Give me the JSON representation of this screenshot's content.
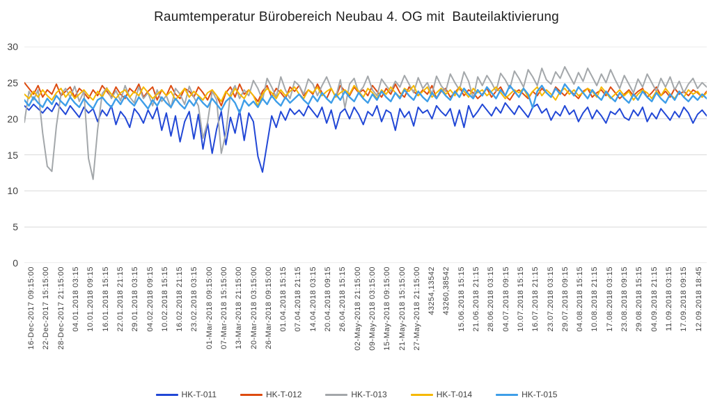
{
  "title": "Raumtemperatur Bürobereich Neubau 4. OG mit  Bauteilaktivierung",
  "chart_data": {
    "type": "line",
    "title": "Raumtemperatur Bürobereich Neubau 4. OG mit Bauteilaktivierung",
    "xlabel": "",
    "ylabel": "",
    "ylim": [
      0,
      30
    ],
    "yticks": [
      0,
      5,
      10,
      15,
      20,
      25,
      30
    ],
    "grid": "horizontal",
    "gridline_color": "#d9d9d9",
    "legend_position": "bottom",
    "x_tick_labels": [
      "16-Dec-2017 09:15:00",
      "22-Dec-2017 15:15:00",
      "28-Dec-2017 21:15:00",
      "04.01.2018 03:15",
      "10.01.2018 09:15",
      "16.01.2018 15:15",
      "22.01.2018 21:15",
      "29.01.2018 03:15",
      "04.02.2018 09:15",
      "10.02.2018 15:15",
      "16.02.2018 21:15",
      "23.02.2018 03:15",
      "01-Mar-2018 09:15:00",
      "07-Mar-2018 15:15:00",
      "13-Mar-2018 21:15:00",
      "20-Mar-2018 03:15:00",
      "26-Mar-2018 09:15:00",
      "01.04.2018 15:15",
      "07.04.2018 21:15",
      "14.04.2018 03:15",
      "20.04.2018 09:15",
      "26.04.2018 15:15",
      "02-May-2018 21:15:00",
      "09-May-2018 03:15:00",
      "15-May-2018 09:15:00",
      "21-May-2018 15:15:00",
      "27-May-2018 21:15:00",
      "43254,13542",
      "43260,38542",
      "15.06.2018 15:15",
      "21.06.2018 21:15",
      "28.06.2018 03:15",
      "04.07.2018 09:15",
      "10.07.2018 15:15",
      "16.07.2018 21:15",
      "23.07.2018 03:15",
      "29.07.2018 09:15",
      "04.08.2018 15:15",
      "10.08.2018 21:15",
      "17.08.2018 03:15",
      "23.08.2018 09:15",
      "29.08.2018 15:15",
      "04.09.2018 21:15",
      "11.09.2018 03:15",
      "17.09.2018 09:15",
      "12.09.2018 18:45"
    ],
    "series": [
      {
        "name": "HK-T-011",
        "color": "#2147d6",
        "stroke_width": 2,
        "values": [
          21.8,
          21.2,
          22.0,
          21.4,
          20.8,
          21.6,
          21.0,
          22.2,
          21.4,
          20.6,
          21.8,
          21.0,
          20.2,
          21.6,
          20.8,
          21.4,
          19.6,
          21.2,
          20.4,
          21.8,
          19.2,
          21.0,
          20.2,
          18.8,
          21.4,
          20.6,
          19.4,
          21.2,
          20.0,
          21.6,
          18.4,
          20.8,
          17.6,
          20.4,
          16.8,
          19.6,
          21.0,
          17.2,
          20.6,
          15.8,
          19.4,
          15.2,
          18.6,
          21.0,
          16.4,
          20.2,
          18.0,
          21.2,
          17.0,
          20.8,
          19.6,
          14.8,
          12.6,
          16.5,
          20.4,
          18.8,
          21.0,
          19.8,
          21.4,
          20.6,
          21.2,
          20.4,
          21.8,
          21.0,
          20.2,
          21.6,
          19.4,
          21.2,
          18.6,
          20.8,
          21.4,
          20.0,
          21.6,
          20.6,
          19.2,
          21.0,
          20.4,
          21.8,
          19.6,
          21.2,
          20.8,
          18.4,
          21.4,
          20.2,
          21.0,
          19.0,
          21.6,
          20.8,
          21.2,
          20.0,
          21.8,
          21.0,
          20.4,
          21.4,
          19.0,
          21.2,
          18.8,
          21.8,
          20.2,
          21.0,
          22.0,
          21.2,
          20.4,
          21.6,
          20.8,
          22.2,
          21.4,
          20.6,
          21.8,
          21.0,
          20.2,
          21.6,
          22.0,
          20.8,
          21.4,
          19.8,
          21.0,
          20.4,
          21.8,
          20.6,
          21.2,
          19.6,
          20.8,
          21.6,
          20.0,
          21.2,
          20.4,
          19.4,
          21.0,
          20.6,
          21.4,
          20.2,
          19.8,
          21.2,
          20.4,
          21.6,
          19.6,
          20.8,
          20.0,
          21.4,
          20.6,
          19.8,
          21.0,
          20.2,
          21.6,
          20.8,
          19.4,
          20.6,
          21.2,
          20.4
        ]
      },
      {
        "name": "HK-T-012",
        "color": "#dd4b0f",
        "stroke_width": 2,
        "values": [
          25.0,
          24.2,
          23.4,
          24.6,
          23.0,
          24.0,
          23.4,
          24.8,
          23.2,
          23.8,
          24.4,
          23.0,
          24.2,
          23.6,
          22.8,
          24.0,
          23.2,
          24.6,
          23.8,
          23.0,
          24.4,
          23.4,
          22.8,
          24.2,
          23.6,
          24.8,
          23.0,
          23.8,
          24.4,
          22.6,
          24.0,
          23.2,
          24.6,
          23.4,
          22.8,
          24.2,
          23.8,
          23.0,
          24.4,
          23.6,
          22.6,
          24.0,
          23.2,
          21.8,
          23.6,
          24.4,
          23.0,
          24.8,
          23.4,
          24.0,
          23.2,
          22.4,
          23.8,
          24.6,
          23.0,
          24.2,
          23.6,
          22.8,
          24.4,
          23.8,
          24.6,
          23.2,
          24.0,
          23.4,
          24.8,
          23.6,
          22.8,
          24.2,
          23.0,
          24.6,
          23.8,
          23.2,
          24.4,
          23.6,
          24.0,
          23.2,
          24.6,
          23.8,
          23.0,
          24.2,
          23.4,
          24.8,
          23.6,
          23.0,
          24.4,
          23.8,
          23.2,
          24.0,
          23.4,
          24.6,
          22.8,
          23.8,
          24.2,
          23.0,
          23.6,
          24.4,
          23.2,
          24.0,
          23.6,
          22.8,
          23.4,
          24.2,
          23.0,
          23.8,
          24.4,
          23.2,
          22.6,
          23.6,
          24.0,
          23.4,
          22.8,
          23.8,
          23.2,
          24.2,
          23.6,
          23.0,
          24.4,
          23.8,
          23.2,
          24.0,
          23.4,
          22.8,
          23.8,
          24.2,
          23.0,
          23.6,
          24.0,
          23.2,
          24.4,
          23.6,
          22.8,
          23.4,
          24.0,
          23.2,
          23.8,
          24.2,
          23.0,
          23.6,
          24.4,
          23.2,
          23.8,
          23.0,
          24.2,
          23.4,
          23.8,
          23.2,
          24.0,
          23.6,
          23.0,
          23.8
        ]
      },
      {
        "name": "HK-T-013",
        "color": "#a3a7aa",
        "stroke_width": 2,
        "values": [
          19.5,
          23.8,
          22.6,
          24.0,
          18.0,
          13.4,
          12.7,
          19.0,
          23.4,
          24.2,
          23.0,
          24.5,
          22.4,
          23.8,
          14.5,
          11.6,
          18.5,
          23.5,
          24.3,
          22.8,
          23.9,
          22.5,
          24.6,
          23.0,
          22.2,
          24.4,
          22.8,
          23.6,
          21.8,
          24.0,
          22.4,
          23.2,
          21.5,
          24.2,
          23.4,
          22.0,
          24.5,
          23.0,
          21.8,
          17.3,
          19.5,
          23.8,
          22.6,
          15.2,
          18.0,
          23.5,
          24.6,
          22.8,
          24.0,
          23.2,
          25.3,
          24.2,
          22.6,
          25.6,
          24.4,
          23.0,
          25.8,
          24.0,
          22.8,
          25.2,
          24.6,
          23.4,
          25.5,
          24.8,
          23.2,
          24.6,
          25.8,
          24.2,
          23.0,
          25.4,
          21.5,
          24.8,
          25.6,
          23.6,
          24.4,
          25.9,
          24.0,
          23.2,
          25.5,
          24.6,
          23.8,
          25.2,
          24.4,
          26.0,
          24.8,
          23.6,
          25.7,
          24.2,
          25.0,
          23.4,
          25.9,
          24.6,
          23.8,
          26.2,
          25.0,
          24.0,
          26.5,
          25.2,
          22.8,
          25.8,
          24.6,
          26.0,
          25.0,
          23.8,
          26.3,
          25.4,
          24.2,
          26.6,
          25.6,
          24.4,
          26.8,
          25.8,
          24.6,
          27.0,
          25.4,
          24.8,
          26.5,
          25.6,
          27.2,
          26.0,
          24.8,
          26.4,
          25.2,
          27.0,
          25.8,
          24.6,
          26.2,
          25.0,
          26.8,
          25.4,
          24.2,
          26.0,
          24.8,
          23.6,
          25.5,
          24.4,
          26.2,
          25.0,
          23.8,
          25.6,
          24.4,
          25.8,
          24.0,
          25.2,
          23.6,
          24.8,
          25.6,
          24.2,
          25.0,
          24.4
        ]
      },
      {
        "name": "HK-T-014",
        "color": "#f5b800",
        "stroke_width": 2,
        "values": [
          23.4,
          22.8,
          23.8,
          23.0,
          24.0,
          23.2,
          22.6,
          23.6,
          24.2,
          23.0,
          23.8,
          22.8,
          23.4,
          24.0,
          23.2,
          22.6,
          23.8,
          23.0,
          24.2,
          23.4,
          22.8,
          23.6,
          24.0,
          23.0,
          23.8,
          23.2,
          24.4,
          23.6,
          22.8,
          23.4,
          24.0,
          23.2,
          23.8,
          22.6,
          23.4,
          24.2,
          23.0,
          23.8,
          23.2,
          22.6,
          23.6,
          24.0,
          23.2,
          22.4,
          23.8,
          23.0,
          24.2,
          23.4,
          22.8,
          24.0,
          23.2,
          21.8,
          23.4,
          24.2,
          23.6,
          22.8,
          24.0,
          23.2,
          23.8,
          24.4,
          23.4,
          22.8,
          24.0,
          23.6,
          24.4,
          23.2,
          23.8,
          24.2,
          23.0,
          23.6,
          24.0,
          23.4,
          24.6,
          23.8,
          23.0,
          24.2,
          23.6,
          22.8,
          24.0,
          23.4,
          24.4,
          23.6,
          23.0,
          24.2,
          23.8,
          24.6,
          23.2,
          23.8,
          24.4,
          23.0,
          23.6,
          24.2,
          23.4,
          24.0,
          23.2,
          24.4,
          23.8,
          23.0,
          24.2,
          23.6,
          24.0,
          23.2,
          23.8,
          24.4,
          23.6,
          22.8,
          23.4,
          24.0,
          23.6,
          24.2,
          23.0,
          23.8,
          24.4,
          23.2,
          24.0,
          23.4,
          22.6,
          23.8,
          24.2,
          23.4,
          24.0,
          23.2,
          23.6,
          24.2,
          23.8,
          23.0,
          24.4,
          23.6,
          22.8,
          23.4,
          24.0,
          23.2,
          23.8,
          22.6,
          23.4,
          24.0,
          23.6,
          22.8,
          23.8,
          23.2,
          24.2,
          23.4,
          22.8,
          23.8,
          23.0,
          24.0,
          23.4,
          23.8,
          23.0,
          23.6
        ]
      },
      {
        "name": "HK-T-015",
        "color": "#3e9ee8",
        "stroke_width": 2.4,
        "values": [
          22.6,
          21.8,
          23.0,
          22.2,
          21.6,
          22.8,
          22.0,
          23.2,
          22.4,
          21.8,
          23.0,
          22.2,
          21.6,
          22.8,
          22.0,
          21.4,
          22.6,
          23.0,
          22.2,
          21.6,
          22.8,
          22.0,
          23.2,
          22.4,
          21.8,
          23.0,
          22.2,
          21.4,
          22.6,
          21.8,
          23.0,
          22.2,
          21.6,
          22.8,
          22.0,
          21.4,
          22.6,
          21.8,
          23.0,
          22.2,
          21.6,
          22.8,
          22.0,
          21.2,
          22.4,
          23.0,
          22.2,
          20.8,
          22.6,
          21.8,
          22.4,
          21.6,
          22.8,
          22.0,
          23.2,
          22.4,
          21.8,
          23.0,
          22.2,
          22.8,
          23.4,
          22.6,
          22.0,
          23.2,
          22.4,
          23.6,
          22.8,
          22.2,
          23.4,
          22.6,
          23.8,
          23.0,
          22.4,
          23.6,
          22.8,
          22.2,
          23.4,
          22.6,
          23.8,
          23.0,
          22.4,
          23.6,
          22.8,
          24.0,
          23.2,
          22.6,
          23.8,
          23.0,
          22.4,
          23.6,
          22.8,
          24.0,
          23.2,
          22.6,
          23.8,
          23.0,
          24.2,
          23.4,
          22.8,
          24.0,
          23.2,
          24.4,
          23.6,
          22.8,
          24.0,
          23.2,
          24.6,
          23.8,
          23.0,
          24.2,
          23.4,
          21.5,
          23.8,
          24.6,
          23.6,
          23.0,
          24.2,
          23.4,
          24.8,
          24.0,
          23.2,
          24.4,
          23.6,
          22.8,
          24.0,
          23.2,
          22.6,
          23.8,
          23.0,
          22.4,
          23.6,
          22.8,
          22.2,
          23.4,
          22.6,
          23.8,
          23.0,
          22.4,
          23.6,
          22.8,
          22.2,
          23.4,
          22.6,
          23.8,
          23.0,
          22.4,
          23.2,
          22.6,
          23.4,
          22.8
        ]
      }
    ]
  }
}
